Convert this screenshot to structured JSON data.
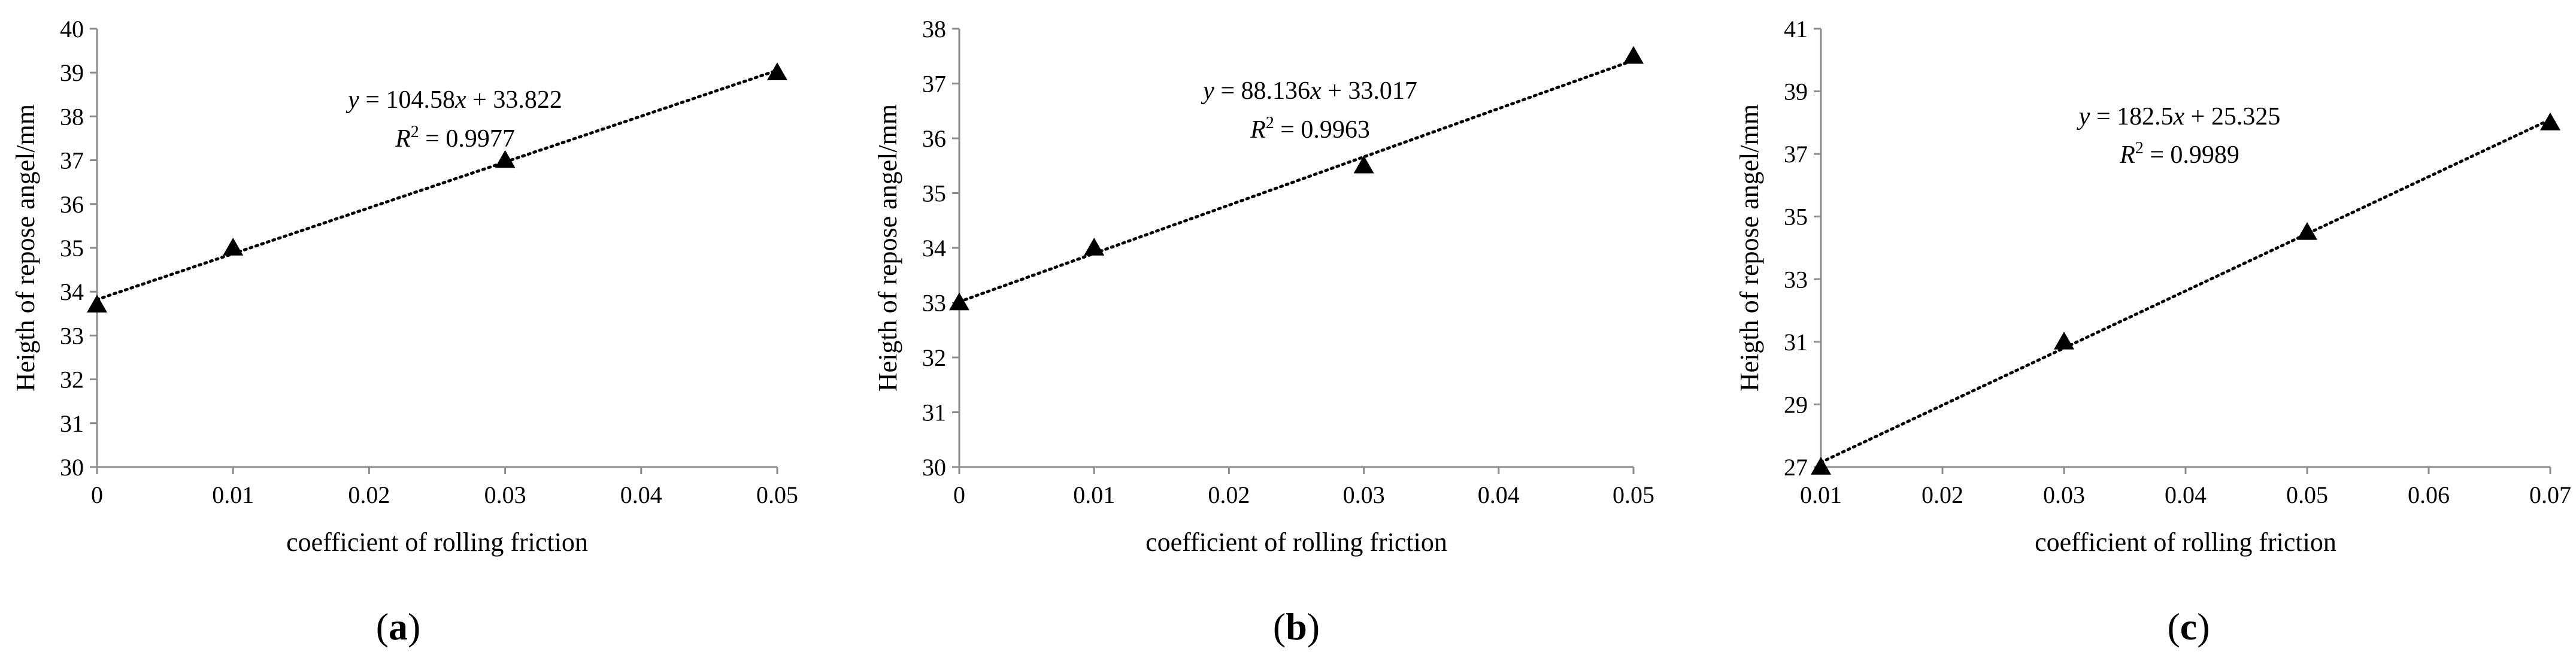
{
  "chart_data": [
    {
      "type": "scatter",
      "panel_label": "(a)",
      "panel_letter": "a",
      "xlabel": "coefficient of rolling friction",
      "ylabel": "Heigth of repose angel/mm",
      "xlim": [
        0,
        0.05
      ],
      "ylim": [
        30,
        40
      ],
      "xticks": [
        0,
        0.01,
        0.02,
        0.03,
        0.04,
        0.05
      ],
      "xtick_labels": [
        "0",
        "0.01",
        "0.02",
        "0.03",
        "0.04",
        "0.05"
      ],
      "yticks": [
        30,
        31,
        32,
        33,
        34,
        35,
        36,
        37,
        38,
        39,
        40
      ],
      "ytick_labels": [
        "30",
        "31",
        "32",
        "33",
        "34",
        "35",
        "36",
        "37",
        "38",
        "39",
        "40"
      ],
      "grid": false,
      "marker": "triangle",
      "x": [
        0,
        0.01,
        0.03,
        0.05
      ],
      "y": [
        33.7,
        35,
        37,
        39
      ],
      "trendline": {
        "type": "linear",
        "slope": 104.58,
        "intercept": 33.822,
        "style": "dotted"
      },
      "equation": {
        "y": "y",
        "rhs_a": " = 104.58",
        "x": "x",
        "rhs_b": " + 33.822"
      },
      "r2": {
        "r": "R",
        "sup": "2",
        "rhs": " = 0.9977"
      }
    },
    {
      "type": "scatter",
      "panel_label": "(b)",
      "panel_letter": "b",
      "xlabel": "coefficient of rolling friction",
      "ylabel": "Heigth of repose angel/mm",
      "xlim": [
        0,
        0.05
      ],
      "ylim": [
        30,
        38
      ],
      "xticks": [
        0,
        0.01,
        0.02,
        0.03,
        0.04,
        0.05
      ],
      "xtick_labels": [
        "0",
        "0.01",
        "0.02",
        "0.03",
        "0.04",
        "0.05"
      ],
      "yticks": [
        30,
        31,
        32,
        33,
        34,
        35,
        36,
        37,
        38
      ],
      "ytick_labels": [
        "30",
        "31",
        "32",
        "33",
        "34",
        "35",
        "36",
        "37",
        "38"
      ],
      "grid": false,
      "marker": "triangle",
      "x": [
        0,
        0.01,
        0.03,
        0.05
      ],
      "y": [
        33,
        34,
        35.5,
        37.5
      ],
      "trendline": {
        "type": "linear",
        "slope": 88.136,
        "intercept": 33.017,
        "style": "dotted"
      },
      "equation": {
        "y": "y",
        "rhs_a": " = 88.136",
        "x": "x",
        "rhs_b": " + 33.017"
      },
      "r2": {
        "r": "R",
        "sup": "2",
        "rhs": " = 0.9963"
      }
    },
    {
      "type": "scatter",
      "panel_label": "(c)",
      "panel_letter": "c",
      "xlabel": "coefficient of rolling friction",
      "ylabel": "Heigth of repose angel/mm",
      "xlim": [
        0.01,
        0.07
      ],
      "ylim": [
        27,
        41
      ],
      "xticks": [
        0.01,
        0.02,
        0.03,
        0.04,
        0.05,
        0.06,
        0.07
      ],
      "xtick_labels": [
        "0.01",
        "0.02",
        "0.03",
        "0.04",
        "0.05",
        "0.06",
        "0.07"
      ],
      "yticks": [
        27,
        29,
        31,
        33,
        35,
        37,
        39,
        41
      ],
      "ytick_labels": [
        "27",
        "29",
        "31",
        "33",
        "35",
        "37",
        "39",
        "41"
      ],
      "grid": false,
      "marker": "triangle",
      "x": [
        0.01,
        0.03,
        0.05,
        0.07
      ],
      "y": [
        27,
        31,
        34.5,
        38
      ],
      "trendline": {
        "type": "linear",
        "slope": 182.5,
        "intercept": 25.325,
        "style": "dotted"
      },
      "equation": {
        "y": "y",
        "rhs_a": " = 182.5",
        "x": "x",
        "rhs_b": " + 25.325"
      },
      "r2": {
        "r": "R",
        "sup": "2",
        "rhs": " = 0.9989"
      }
    }
  ]
}
